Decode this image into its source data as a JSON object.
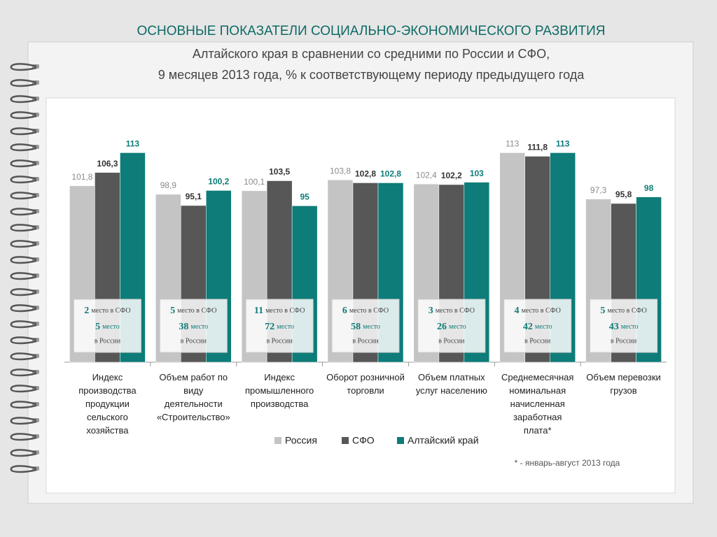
{
  "chart_data": {
    "type": "bar",
    "title": "ОСНОВНЫЕ ПОКАЗАТЕЛИ СОЦИАЛЬНО-ЭКОНОМИЧЕСКОГО РАЗВИТИЯ",
    "subtitle": [
      "Алтайского края в сравнении со средними по России и СФО,",
      "9 месяцев 2013 года, % к соответствующему периоду предыдущего года"
    ],
    "categories": [
      "Индекс производства продукции сельского хозяйства",
      "Объем работ по виду деятельности «Строительство»",
      "Индекс промышленного производства",
      "Оборот розничной торговли",
      "Объем платных услуг населению",
      "Среднемесячная номинальная начисленная заработная плата*",
      "Объем перевозки грузов"
    ],
    "series": [
      {
        "name": "Россия",
        "color": "#c4c4c4",
        "label_color": "#8a8a8a",
        "values": [
          101.8,
          98.9,
          100.1,
          103.8,
          102.4,
          113,
          97.3
        ],
        "value_labels": [
          "101,8",
          "98,9",
          "100,1",
          "103,8",
          "102,4",
          "113",
          "97,3"
        ]
      },
      {
        "name": "СФО",
        "color": "#575757",
        "label_color": "#333333",
        "values": [
          106.3,
          95.1,
          103.5,
          102.8,
          102.2,
          111.8,
          95.8
        ],
        "value_labels": [
          "106,3",
          "95,1",
          "103,5",
          "102,8",
          "102,2",
          "111,8",
          "95,8"
        ]
      },
      {
        "name": "Алтайский край",
        "color": "#0e7c78",
        "label_color": "#0e7c78",
        "values": [
          113,
          100.2,
          95,
          102.8,
          103,
          113,
          98
        ],
        "value_labels": [
          "113",
          "100,2",
          "95",
          "102,8",
          "103",
          "113",
          "98"
        ]
      }
    ],
    "ylim": [
      42,
      115
    ],
    "ranks": {
      "sfo": [
        2,
        5,
        11,
        6,
        3,
        4,
        5
      ],
      "russia": [
        5,
        38,
        72,
        58,
        26,
        42,
        43
      ],
      "sfo_text": "место в СФО",
      "place_word": "место",
      "russia_text": "в России"
    },
    "footnote": "* - январь-август 2013 года"
  }
}
